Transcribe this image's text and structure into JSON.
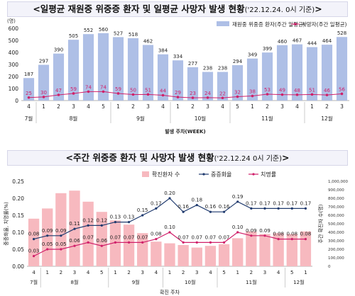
{
  "chart_data": [
    {
      "type": "bar",
      "title": "<일평균 재원중 위중증 환자 및 일평균 사망자 발생 현황",
      "title_note": "('22.12.24. 0시 기준)",
      "title_end": ">",
      "unit_label": "(명)",
      "xlabel": "발생 주차(WEEK)",
      "ylim": [
        0,
        600
      ],
      "y_ticks": [
        0,
        100,
        200,
        300,
        400,
        500,
        600
      ],
      "grid": false,
      "legend_position": "top-right",
      "categories": [
        "4",
        "1",
        "2",
        "3",
        "4",
        "5",
        "1",
        "2",
        "3",
        "4",
        "1",
        "2",
        "3",
        "4",
        "5",
        "1",
        "2",
        "3",
        "4",
        "1",
        "2",
        "3"
      ],
      "month_groups": [
        {
          "label": "7월",
          "count": 1
        },
        {
          "label": "8월",
          "count": 5
        },
        {
          "label": "9월",
          "count": 4
        },
        {
          "label": "10월",
          "count": 4
        },
        {
          "label": "11월",
          "count": 5
        },
        {
          "label": "12월",
          "count": 3
        }
      ],
      "series": [
        {
          "name": "재원중 위중증 환자(주간 일평균)",
          "kind": "bar",
          "color": "#aebfe6",
          "values": [
            187,
            297,
            390,
            505,
            552,
            560,
            527,
            518,
            462,
            384,
            334,
            277,
            238,
            238,
            294,
            349,
            399,
            460,
            467,
            444,
            464,
            528
          ]
        },
        {
          "name": "사망자(주간 일평균)",
          "kind": "line",
          "color": "#d0206a",
          "values": [
            25,
            30,
            47,
            59,
            74,
            74,
            59,
            50,
            51,
            44,
            29,
            23,
            24,
            22,
            32,
            38,
            53,
            49,
            48,
            51,
            46,
            56
          ]
        }
      ]
    },
    {
      "type": "bar",
      "title": "<주간 위중증 환자 및 사망자 발생 현황",
      "title_note": "('22.12.24 0시 기준)",
      "title_end": ">",
      "xlabel": "확진 주차",
      "ylabel": "중증화율, 치명률(%)",
      "ylabel_right": "주간 확진자 수(명)",
      "ylim": [
        0,
        0.25
      ],
      "y_ticks": [
        0,
        0.05,
        0.1,
        0.15,
        0.2,
        0.25
      ],
      "y_tick_labels": [
        "0.00",
        "0.05",
        "0.10",
        "0.15",
        "0.20",
        "0.25"
      ],
      "ylim_right": [
        0,
        1000000
      ],
      "y_ticks_right": [
        0,
        100000,
        200000,
        300000,
        400000,
        500000,
        600000,
        700000,
        800000,
        900000,
        1000000
      ],
      "y_tick_labels_right": [
        "0",
        "100,000",
        "200,000",
        "300,000",
        "400,000",
        "500,000",
        "600,000",
        "700,000",
        "800,000",
        "900,000",
        "1,000,000"
      ],
      "grid": false,
      "legend_position": "top",
      "categories": [
        "4",
        "1",
        "2",
        "3",
        "4",
        "5",
        "1",
        "2",
        "3",
        "4",
        "1",
        "2",
        "3",
        "4",
        "5",
        "1",
        "2",
        "3",
        "4",
        "5",
        "1"
      ],
      "month_groups": [
        {
          "label": "7월",
          "count": 1
        },
        {
          "label": "8월",
          "count": 5
        },
        {
          "label": "9월",
          "count": 4
        },
        {
          "label": "10월",
          "count": 4
        },
        {
          "label": "11월",
          "count": 5
        },
        {
          "label": "12월",
          "count": 2
        }
      ],
      "series": [
        {
          "name": "확진환자 수",
          "kind": "bar",
          "axis": "right",
          "color": "#f7b9bf",
          "values": [
            560000,
            680000,
            860000,
            890000,
            760000,
            640000,
            540000,
            490000,
            390000,
            290000,
            270000,
            250000,
            220000,
            240000,
            260000,
            330000,
            410000,
            380000,
            390000,
            380000,
            410000
          ]
        },
        {
          "name": "중증화율",
          "kind": "line",
          "axis": "left",
          "color": "#1f3a6e",
          "values": [
            0.08,
            0.09,
            0.09,
            0.11,
            0.12,
            0.12,
            0.13,
            0.13,
            0.15,
            0.17,
            0.2,
            0.16,
            0.18,
            0.16,
            0.16,
            0.19,
            0.17,
            0.17,
            0.17,
            0.17,
            0.17
          ]
        },
        {
          "name": "치명률",
          "kind": "line",
          "axis": "left",
          "color": "#d0206a",
          "values": [
            0.03,
            0.05,
            0.05,
            0.06,
            0.07,
            0.06,
            0.07,
            0.07,
            0.07,
            0.08,
            0.1,
            0.07,
            0.07,
            0.07,
            0.07,
            0.1,
            0.09,
            0.09,
            0.08,
            0.08,
            0.08
          ]
        }
      ]
    }
  ]
}
